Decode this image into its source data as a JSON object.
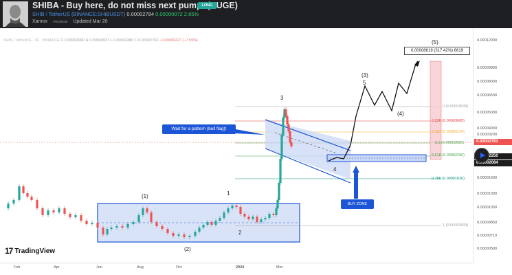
{
  "header": {
    "title": "SHIBA - Buy here, do not miss next pump! (HUGE)",
    "badge": "LONG",
    "symbol": "SHIB / TetherUS (BINANCE:SHIBUSDT)",
    "price": "0.00002784",
    "change": "0.00000072",
    "change_pct": "2.65%",
    "author": "Xanrox",
    "author_badge": "PREMIUM",
    "updated": "Updated Mar 20"
  },
  "chart_info": {
    "symbol": "SHIB / TetherUS · 3D · BINANCE",
    "ohlc": "O 0.00002990  H 0.00003037  L 0.00002380  C 0.00002763",
    "change": "−0.00000227 (−7.59%)"
  },
  "price_axis": {
    "ticks": [
      "0.00012000",
      "0.00009800",
      "0.00008000",
      "0.00006500",
      "0.00005000",
      "0.00004000",
      "0.00003200",
      "0.00001600",
      "0.00001300",
      "0.00001050",
      "0.00000850",
      "0.00000710",
      "0.00000590"
    ],
    "current_price_tag": "0.00002763",
    "buy_zone_top_tag": "0.00002250",
    "buy_zone_bottom_tag": "0.00002084"
  },
  "time_axis": {
    "labels": [
      "Feb",
      "Apr",
      "Jun",
      "Aug",
      "Oct",
      "2024",
      "Mar"
    ]
  },
  "fib_levels": [
    {
      "label": "0 (0.00004539)",
      "color": "#9e9e9e"
    },
    {
      "label": "0.236 (0.00003665)",
      "color": "#e53935"
    },
    {
      "label": "0.382 (0.00003124)",
      "color": "#f9a825"
    },
    {
      "label": "0.5 (0.00002686)",
      "color": "#43a047"
    },
    {
      "label": "0.618 (0.00002250)",
      "color": "#43a047"
    },
    {
      "label": "0.786 (0.00001626)",
      "color": "#00897b"
    },
    {
      "label": "1 (0.00000833)",
      "color": "#9e9e9e"
    }
  ],
  "wave_labels": {
    "w1": "(1)",
    "w2": "(2)",
    "w3": "(3)",
    "w4": "(4)",
    "w5": "(5)",
    "s1": "1",
    "s2": "2",
    "s3": "3",
    "s4": "4",
    "s5": "5"
  },
  "annotations": {
    "bull_flag": "Wait for a pattern (bull flag)!",
    "buy_zone": "BUY ZONE",
    "target": "0.00008619 (317.42%) 6619"
  },
  "branding": {
    "logo_mark": "17",
    "logo_name": "TradingView"
  },
  "colors": {
    "accent": "#1c55d6",
    "candle_up": "#26a69a",
    "candle_down": "#ef5350",
    "zone_fill": "#c9d7f5"
  }
}
